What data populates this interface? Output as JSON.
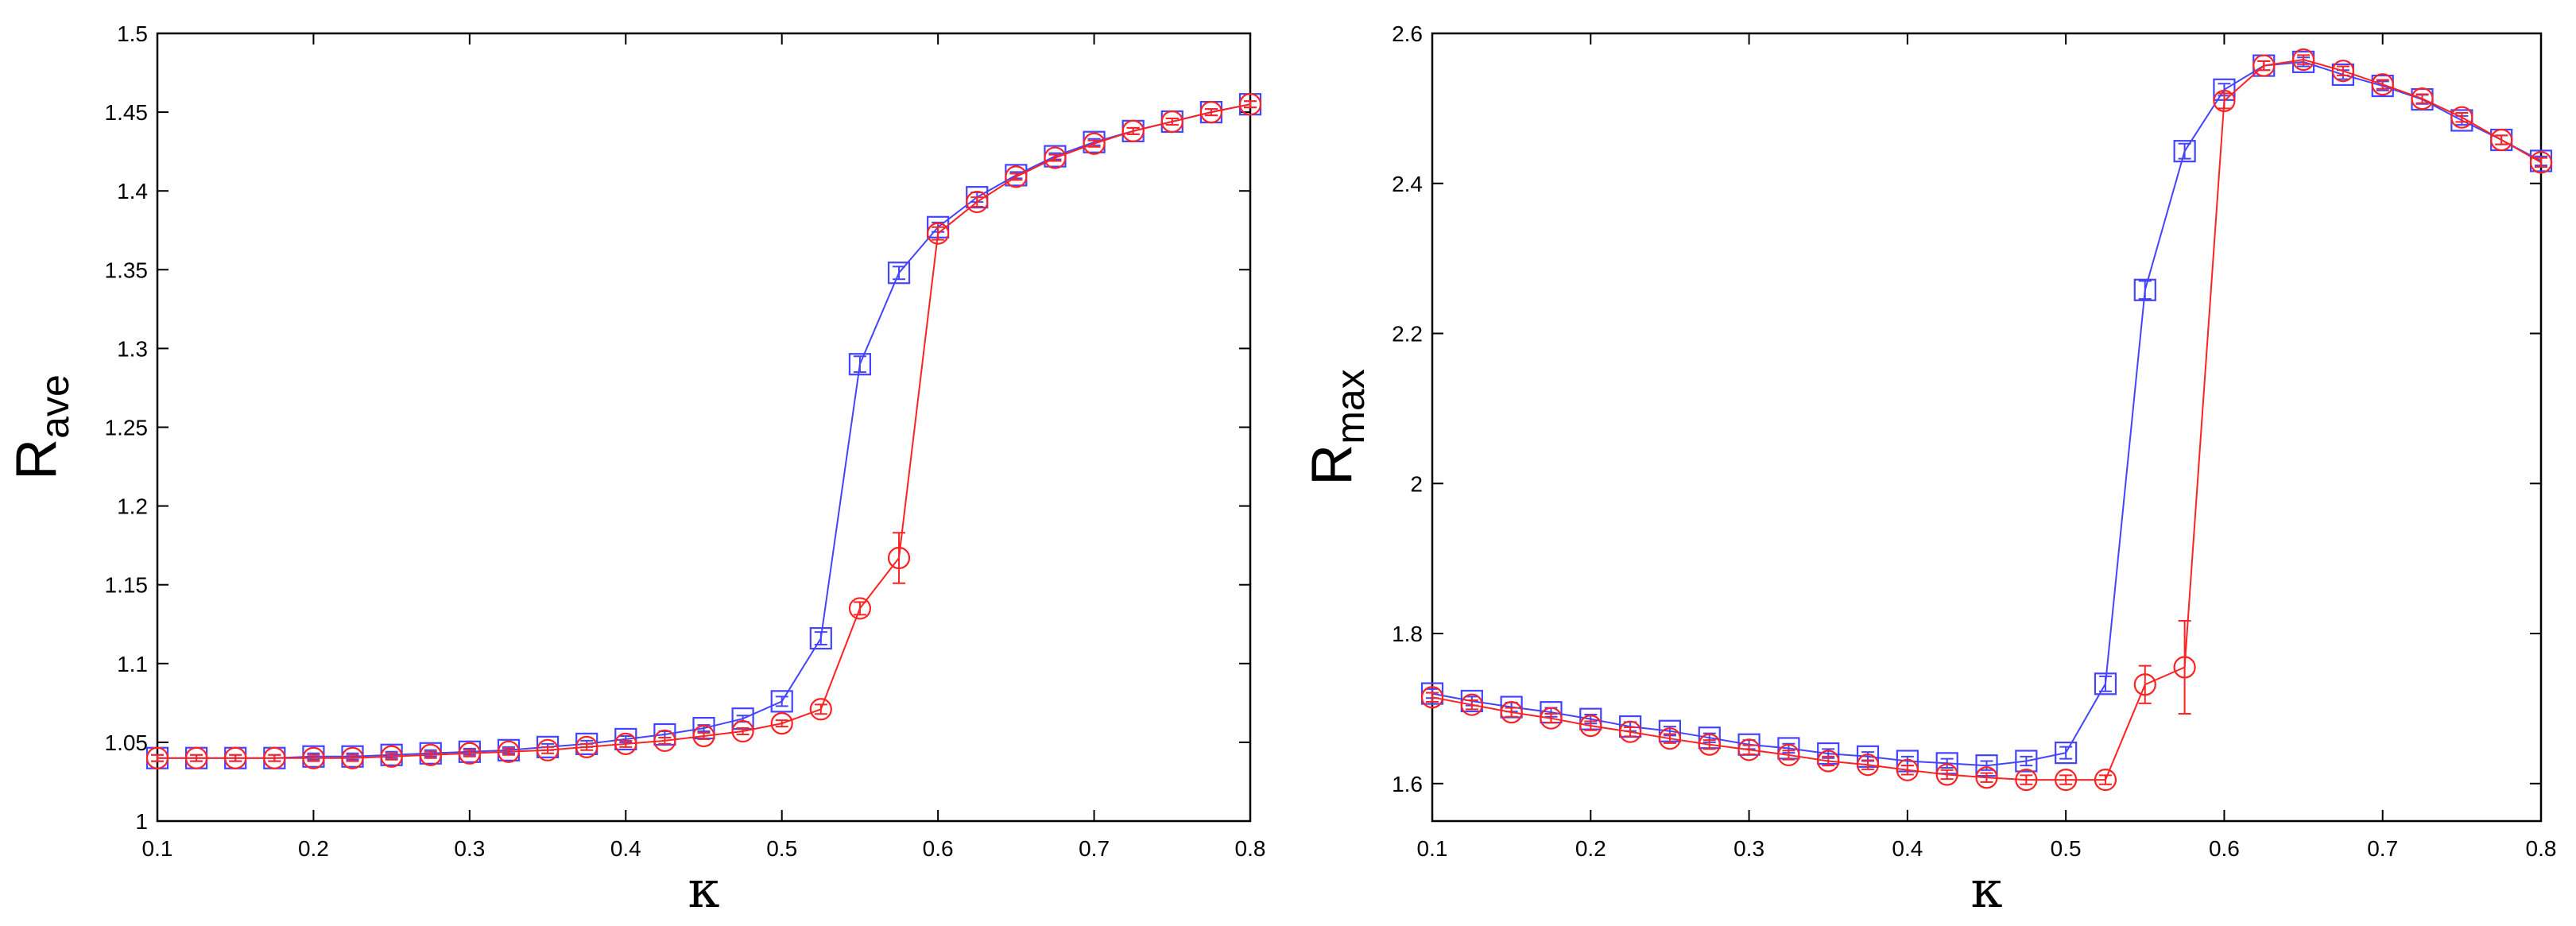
{
  "chart_data": [
    {
      "type": "line",
      "ylabel_main": "R",
      "ylabel_sub": "ave",
      "xlabel": "κ",
      "title": "",
      "xlim": [
        0.1,
        0.8
      ],
      "ylim": [
        1.0,
        1.5
      ],
      "xticks": [
        "0.1",
        "0.2",
        "0.3",
        "0.4",
        "0.5",
        "0.6",
        "0.7",
        "0.8"
      ],
      "yticks": [
        "1",
        "1.05",
        "1.1",
        "1.15",
        "1.2",
        "1.25",
        "1.3",
        "1.35",
        "1.4",
        "1.45",
        "1.5"
      ],
      "grid": false,
      "x": [
        0.1,
        0.125,
        0.15,
        0.175,
        0.2,
        0.225,
        0.25,
        0.275,
        0.3,
        0.325,
        0.35,
        0.375,
        0.4,
        0.425,
        0.45,
        0.475,
        0.5,
        0.525,
        0.55,
        0.575,
        0.6,
        0.625,
        0.65,
        0.675,
        0.7,
        0.725,
        0.75,
        0.775,
        0.8
      ],
      "series": [
        {
          "marker": "square",
          "color": "#4444ff",
          "values": [
            1.04,
            1.04,
            1.04,
            1.04,
            1.041,
            1.041,
            1.042,
            1.043,
            1.044,
            1.045,
            1.047,
            1.049,
            1.052,
            1.055,
            1.059,
            1.065,
            1.076,
            1.116,
            1.29,
            1.348,
            1.377,
            1.396,
            1.41,
            1.422,
            1.431,
            1.438,
            1.444,
            1.45,
            1.455
          ],
          "errors": [
            0.002,
            0.002,
            0.002,
            0.002,
            0.002,
            0.002,
            0.002,
            0.002,
            0.002,
            0.002,
            0.002,
            0.002,
            0.002,
            0.002,
            0.002,
            0.002,
            0.003,
            0.004,
            0.005,
            0.004,
            0.003,
            0.003,
            0.002,
            0.002,
            0.002,
            0.002,
            0.002,
            0.002,
            0.002
          ]
        },
        {
          "marker": "circle",
          "color": "#ff2222",
          "values": [
            1.04,
            1.04,
            1.04,
            1.04,
            1.04,
            1.04,
            1.041,
            1.042,
            1.043,
            1.044,
            1.045,
            1.047,
            1.049,
            1.051,
            1.054,
            1.057,
            1.062,
            1.071,
            1.135,
            1.167,
            1.373,
            1.393,
            1.409,
            1.421,
            1.43,
            1.438,
            1.444,
            1.45,
            1.455
          ],
          "errors": [
            0.002,
            0.002,
            0.002,
            0.002,
            0.002,
            0.002,
            0.002,
            0.002,
            0.002,
            0.002,
            0.002,
            0.002,
            0.002,
            0.002,
            0.002,
            0.002,
            0.002,
            0.003,
            0.004,
            0.016,
            0.004,
            0.003,
            0.002,
            0.002,
            0.002,
            0.002,
            0.002,
            0.002,
            0.002
          ]
        }
      ]
    },
    {
      "type": "line",
      "ylabel_main": "R",
      "ylabel_sub": "max",
      "xlabel": "κ",
      "title": "",
      "xlim": [
        0.1,
        0.8
      ],
      "ylim": [
        1.55,
        2.6
      ],
      "xticks": [
        "0.1",
        "0.2",
        "0.3",
        "0.4",
        "0.5",
        "0.6",
        "0.7",
        "0.8"
      ],
      "yticks": [
        "1.6",
        "1.8",
        "2",
        "2.2",
        "2.4",
        "2.6"
      ],
      "grid": false,
      "x": [
        0.1,
        0.125,
        0.15,
        0.175,
        0.2,
        0.225,
        0.25,
        0.275,
        0.3,
        0.325,
        0.35,
        0.375,
        0.4,
        0.425,
        0.45,
        0.475,
        0.5,
        0.525,
        0.55,
        0.575,
        0.6,
        0.625,
        0.65,
        0.675,
        0.7,
        0.725,
        0.75,
        0.775,
        0.8
      ],
      "series": [
        {
          "marker": "square",
          "color": "#4444ff",
          "values": [
            1.72,
            1.71,
            1.702,
            1.695,
            1.686,
            1.676,
            1.67,
            1.661,
            1.652,
            1.647,
            1.64,
            1.636,
            1.63,
            1.627,
            1.624,
            1.63,
            1.641,
            1.733,
            2.258,
            2.443,
            2.525,
            2.557,
            2.562,
            2.545,
            2.53,
            2.512,
            2.484,
            2.458,
            2.43
          ],
          "errors": [
            0.006,
            0.006,
            0.006,
            0.006,
            0.006,
            0.006,
            0.006,
            0.006,
            0.006,
            0.006,
            0.006,
            0.006,
            0.006,
            0.006,
            0.006,
            0.006,
            0.008,
            0.01,
            0.012,
            0.01,
            0.008,
            0.006,
            0.006,
            0.006,
            0.006,
            0.006,
            0.006,
            0.006,
            0.006
          ]
        },
        {
          "marker": "circle",
          "color": "#ff2222",
          "values": [
            1.715,
            1.705,
            1.695,
            1.687,
            1.677,
            1.669,
            1.66,
            1.652,
            1.645,
            1.638,
            1.63,
            1.625,
            1.618,
            1.612,
            1.608,
            1.605,
            1.605,
            1.605,
            1.732,
            1.755,
            2.51,
            2.557,
            2.565,
            2.55,
            2.532,
            2.513,
            2.488,
            2.458,
            2.428
          ],
          "errors": [
            0.006,
            0.006,
            0.006,
            0.006,
            0.006,
            0.006,
            0.006,
            0.006,
            0.006,
            0.006,
            0.006,
            0.006,
            0.006,
            0.006,
            0.006,
            0.006,
            0.006,
            0.006,
            0.025,
            0.062,
            0.01,
            0.006,
            0.006,
            0.006,
            0.006,
            0.006,
            0.006,
            0.006,
            0.006
          ]
        }
      ]
    }
  ]
}
